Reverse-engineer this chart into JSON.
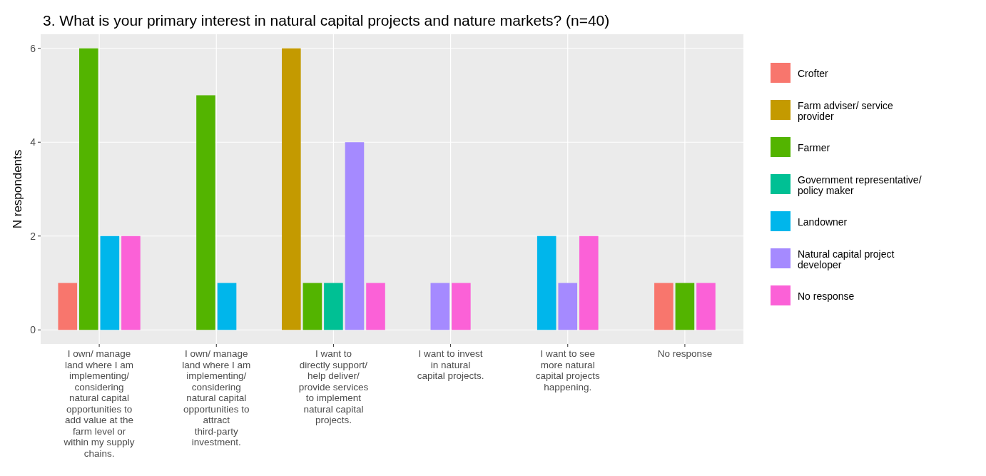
{
  "chart_data": {
    "type": "bar",
    "title": "3. What is your primary interest in natural capital projects and nature markets? (n=40)",
    "ylabel": "N respondents",
    "categories": [
      "I own/ manage land where I am implementing/ considering natural capital opportunities to add value at the farm level or within my supply chains.",
      "I own/ manage land where I am implementing/ considering natural capital opportunities to attract third-party investment.",
      "I want to directly support/ help deliver/ provide services to implement natural capital projects.",
      "I want to invest in natural capital projects.",
      "I want to see more natural capital projects happening.",
      "No response"
    ],
    "series": [
      {
        "name": "Crofter",
        "color": "#f8766d",
        "values": [
          1,
          null,
          null,
          null,
          null,
          1
        ]
      },
      {
        "name": "Farm adviser/ service provider",
        "color": "#c49a00",
        "values": [
          null,
          null,
          6,
          null,
          null,
          null
        ]
      },
      {
        "name": "Farmer",
        "color": "#53b400",
        "values": [
          6,
          5,
          1,
          null,
          null,
          1
        ]
      },
      {
        "name": "Government representative/ policy maker",
        "color": "#00c094",
        "values": [
          null,
          null,
          1,
          null,
          null,
          null
        ]
      },
      {
        "name": "Landowner",
        "color": "#00b6eb",
        "values": [
          2,
          1,
          null,
          null,
          2,
          null
        ]
      },
      {
        "name": "Natural capital project developer",
        "color": "#a58aff",
        "values": [
          null,
          null,
          4,
          1,
          1,
          null
        ]
      },
      {
        "name": "No response",
        "color": "#fb61d7",
        "values": [
          2,
          null,
          1,
          1,
          2,
          1
        ]
      }
    ],
    "ylim": [
      -0.3,
      6.3
    ],
    "yticks": [
      0,
      2,
      4,
      6
    ],
    "grid": true,
    "legend": "right"
  }
}
